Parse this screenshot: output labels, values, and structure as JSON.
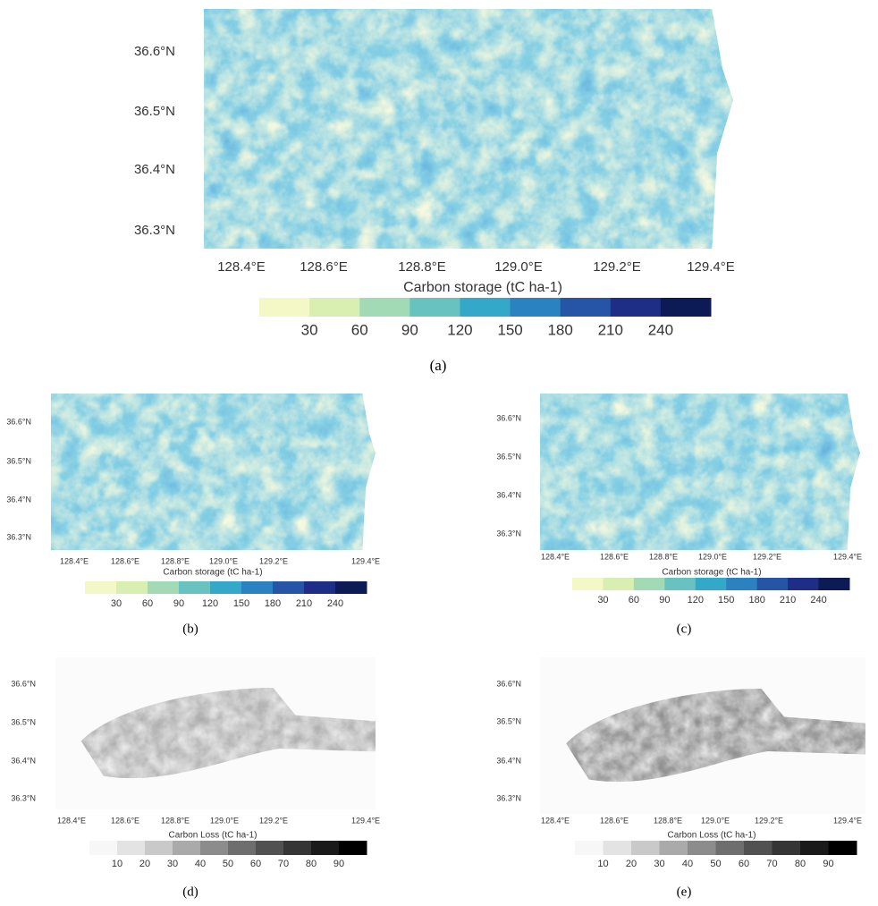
{
  "panels": [
    {
      "label": "(a)",
      "map": "storage",
      "latitude_labels": [
        "36.6°N",
        "36.5°N",
        "36.4°N",
        "36.3°N"
      ],
      "longitude_labels": [
        "128.4°E",
        "128.6°E",
        "128.8°E",
        "129.0°E",
        "129.2°E",
        "129.4°E"
      ],
      "legend": {
        "title": "Carbon storage (tC ha-1)",
        "colors": [
          "#f3f8c6",
          "#d9eeb1",
          "#a3dab6",
          "#68c3c0",
          "#34a8c9",
          "#2b82c0",
          "#2654a6",
          "#1e2d86",
          "#0c1a55"
        ],
        "ticks": [
          "30",
          "60",
          "90",
          "120",
          "150",
          "180",
          "210",
          "240"
        ]
      }
    },
    {
      "label": "(b)",
      "map": "storage",
      "latitude_labels": [
        "36.6°N",
        "36.5°N",
        "36.4°N",
        "36.3°N"
      ],
      "longitude_labels": [
        "128.4°E",
        "128.6°E",
        "128.8°E",
        "129.0°E",
        "129.2°E",
        "129.4°E"
      ],
      "legend": {
        "title": "Carbon storage (tC ha-1)",
        "colors": [
          "#f3f8c6",
          "#d9eeb1",
          "#a3dab6",
          "#68c3c0",
          "#34a8c9",
          "#2b82c0",
          "#2654a6",
          "#1e2d86",
          "#0c1a55"
        ],
        "ticks": [
          "30",
          "60",
          "90",
          "120",
          "150",
          "180",
          "210",
          "240"
        ]
      }
    },
    {
      "label": "(c)",
      "map": "storage",
      "latitude_labels": [
        "36.6°N",
        "36.5°N",
        "36.4°N",
        "36.3°N"
      ],
      "longitude_labels": [
        "128.4°E",
        "128.6°E",
        "128.8°E",
        "129.0°E",
        "129.2°E",
        "129.4°E"
      ],
      "legend": {
        "title": "Carbon storage (tC ha-1)",
        "colors": [
          "#f3f8c6",
          "#d9eeb1",
          "#a3dab6",
          "#68c3c0",
          "#34a8c9",
          "#2b82c0",
          "#2654a6",
          "#1e2d86",
          "#0c1a55"
        ],
        "ticks": [
          "30",
          "60",
          "90",
          "120",
          "150",
          "180",
          "210",
          "240"
        ]
      }
    },
    {
      "label": "(d)",
      "map": "loss",
      "latitude_labels": [
        "36.6°N",
        "36.5°N",
        "36.4°N",
        "36.3°N"
      ],
      "longitude_labels": [
        "128.4°E",
        "128.6°E",
        "128.8°E",
        "129.0°E",
        "129.2°E",
        "129.4°E"
      ],
      "legend": {
        "title": "Carbon Loss (tC ha-1)",
        "colors": [
          "#f7f7f7",
          "#e3e3e3",
          "#c9c9c9",
          "#aaaaaa",
          "#8c8c8c",
          "#6e6e6e",
          "#515151",
          "#353535",
          "#1a1a1a",
          "#000000"
        ],
        "ticks": [
          "10",
          "20",
          "30",
          "40",
          "50",
          "60",
          "70",
          "80",
          "90"
        ]
      }
    },
    {
      "label": "(e)",
      "map": "loss",
      "latitude_labels": [
        "36.6°N",
        "36.5°N",
        "36.4°N",
        "36.3°N"
      ],
      "longitude_labels": [
        "128.4°E",
        "128.6°E",
        "128.8°E",
        "129.0°E",
        "129.2°E",
        "129.4°E"
      ],
      "legend": {
        "title": "Carbon Loss (tC ha-1)",
        "colors": [
          "#f7f7f7",
          "#e3e3e3",
          "#c9c9c9",
          "#aaaaaa",
          "#8c8c8c",
          "#6e6e6e",
          "#515151",
          "#353535",
          "#1a1a1a",
          "#000000"
        ],
        "ticks": [
          "10",
          "20",
          "30",
          "40",
          "50",
          "60",
          "70",
          "80",
          "90"
        ]
      }
    }
  ]
}
